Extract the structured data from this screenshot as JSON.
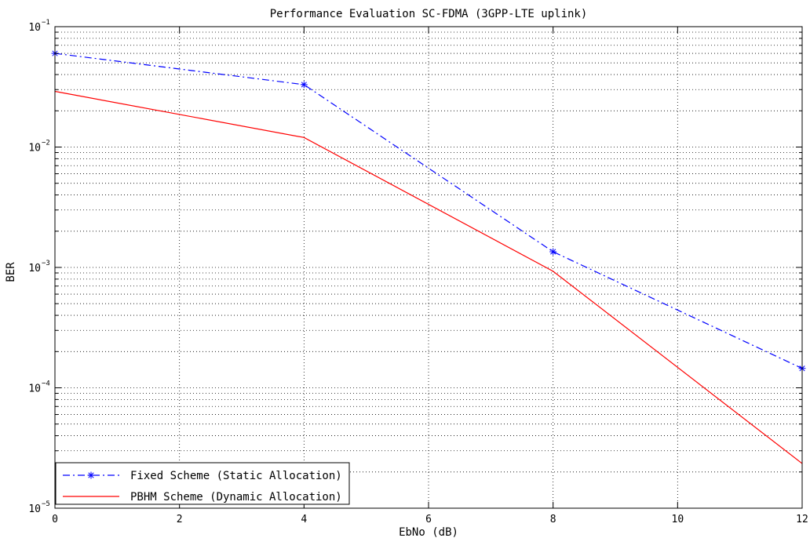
{
  "chart_data": {
    "type": "line",
    "title": "Performance Evaluation SC-FDMA (3GPP-LTE uplink)",
    "xlabel": "EbNo (dB)",
    "ylabel": "BER",
    "xlim": [
      0,
      12
    ],
    "ylim": [
      1e-05,
      0.1
    ],
    "yscale": "log",
    "grid": true,
    "legend_position": "bottom-left",
    "x_ticks": [
      {
        "v": 0,
        "label": "0"
      },
      {
        "v": 2,
        "label": "2"
      },
      {
        "v": 4,
        "label": "4"
      },
      {
        "v": 6,
        "label": "6"
      },
      {
        "v": 8,
        "label": "8"
      },
      {
        "v": 10,
        "label": "10"
      },
      {
        "v": 12,
        "label": "12"
      }
    ],
    "y_ticks": [
      {
        "v": 0.1,
        "base": "10",
        "exp": "−1"
      },
      {
        "v": 0.01,
        "base": "10",
        "exp": "−2"
      },
      {
        "v": 0.001,
        "base": "10",
        "exp": "−3"
      },
      {
        "v": 0.0001,
        "base": "10",
        "exp": "−4"
      },
      {
        "v": 1e-05,
        "base": "10",
        "exp": "−5"
      }
    ],
    "series": [
      {
        "name": "Fixed Scheme (Static Allocation)",
        "color": "#0000ff",
        "linestyle": "dashdot",
        "marker": "asterisk",
        "x": [
          0,
          4,
          8,
          12
        ],
        "y": [
          0.06,
          0.033,
          0.00135,
          0.000145
        ]
      },
      {
        "name": "PBHM Scheme (Dynamic Allocation)",
        "color": "#ff0000",
        "linestyle": "solid",
        "marker": "none",
        "x": [
          0,
          4,
          8,
          12
        ],
        "y": [
          0.029,
          0.012,
          0.00093,
          2.35e-05
        ]
      }
    ]
  }
}
